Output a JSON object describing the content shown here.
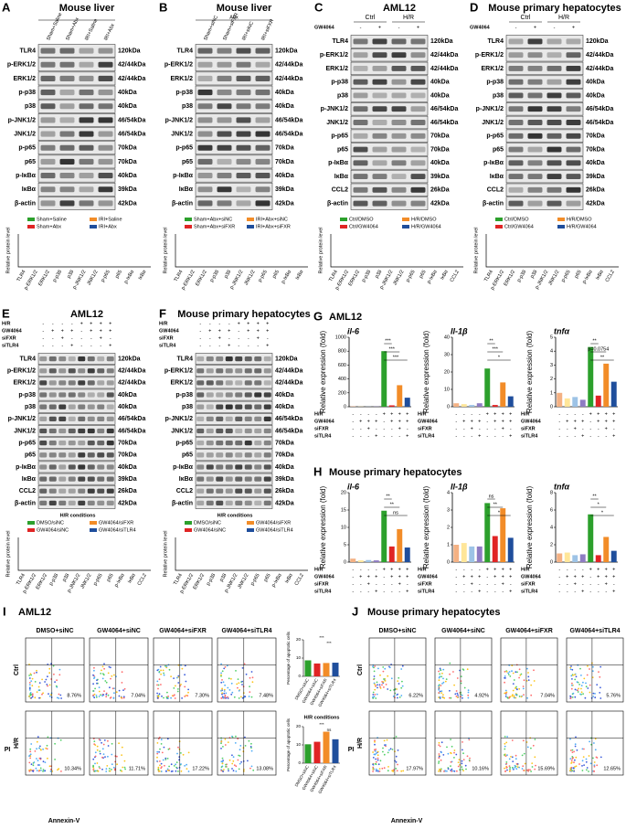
{
  "blot_panels": [
    {
      "letter": "A",
      "title": "Mouse liver",
      "lanes": [
        "Sham+Saline",
        "Sham+Abx",
        "IRI+Saline",
        "IRI+Abx"
      ],
      "rows": [
        [
          "TLR4",
          "120kDa"
        ],
        [
          "p-ERK1/2",
          "42/44kDa"
        ],
        [
          "ERK1/2",
          "42/44kDa"
        ],
        [
          "p-p38",
          "40kDa"
        ],
        [
          "p38",
          "40kDa"
        ],
        [
          "p-JNK1/2",
          "46/54kDa"
        ],
        [
          "JNK1/2",
          "46/54kDa"
        ],
        [
          "p-p65",
          "70kDa"
        ],
        [
          "p65",
          "70kDa"
        ],
        [
          "p-IκBα",
          "40kDa"
        ],
        [
          "IκBα",
          "39kDa"
        ],
        [
          "β-actin",
          "42kDa"
        ]
      ],
      "legend": [
        "Sham+Saline",
        "IRI+Saline",
        "Sham+Abx",
        "IRI+Abx"
      ],
      "legend_colors": [
        "#2ca02c",
        "#f28c28",
        "#e02424",
        "#1f4e9c"
      ],
      "y_label": "Relative protein level"
    },
    {
      "letter": "B",
      "title": "Mouse liver",
      "subtitle": "Abx",
      "lanes": [
        "Sham+siNC",
        "Sham+siFXR",
        "IRI+siNC",
        "IRI+siFXR"
      ],
      "rows": [
        [
          "TLR4",
          "120kDa"
        ],
        [
          "p-ERK1/2",
          "42/44kDa"
        ],
        [
          "ERK1/2",
          "42/44kDa"
        ],
        [
          "p-p38",
          "40kDa"
        ],
        [
          "p38",
          "40kDa"
        ],
        [
          "p-JNK1/2",
          "46/54kDa"
        ],
        [
          "JNK1/2",
          "46/54kDa"
        ],
        [
          "p-p65",
          "70kDa"
        ],
        [
          "p65",
          "70kDa"
        ],
        [
          "p-IκBα",
          "40kDa"
        ],
        [
          "IκBα",
          "39kDa"
        ],
        [
          "β-actin",
          "42kDa"
        ]
      ],
      "legend": [
        "Sham+Abx+siNC",
        "IRI+Abx+siNC",
        "Sham+Abx+siFXR",
        "IRI+Abx+siFXR"
      ],
      "legend_colors": [
        "#2ca02c",
        "#f28c28",
        "#e02424",
        "#1f4e9c"
      ],
      "y_label": "Relative protein level"
    },
    {
      "letter": "C",
      "title": "AML12",
      "groups": [
        "Ctrl",
        "H/R"
      ],
      "treatments": [
        {
          "name": "GW4064",
          "signs": [
            "-",
            "+",
            "-",
            "+"
          ]
        }
      ],
      "rows": [
        [
          "TLR4",
          "120kDa"
        ],
        [
          "p-ERK1/2",
          "42/44kDa"
        ],
        [
          "ERK1/2",
          "42/44kDa"
        ],
        [
          "p-p38",
          "40kDa"
        ],
        [
          "p38",
          "40kDa"
        ],
        [
          "p-JNK1/2",
          "46/54kDa"
        ],
        [
          "JNK1/2",
          "46/54kDa"
        ],
        [
          "p-p65",
          "70kDa"
        ],
        [
          "p65",
          "70kDa"
        ],
        [
          "p-IκBα",
          "40kDa"
        ],
        [
          "IκBα",
          "39kDa"
        ],
        [
          "CCL2",
          "26kDa"
        ],
        [
          "β-actin",
          "42kDa"
        ]
      ],
      "legend": [
        "Ctrl/DMSO",
        "H/R/DMSO",
        "Ctrl/GW4064",
        "H/R/GW4064"
      ],
      "legend_colors": [
        "#2ca02c",
        "#f28c28",
        "#e02424",
        "#1f4e9c"
      ],
      "y_label": "Relative protein level"
    },
    {
      "letter": "D",
      "title": "Mouse primary hepatocytes",
      "groups": [
        "Ctrl",
        "H/R"
      ],
      "treatments": [
        {
          "name": "GW4064",
          "signs": [
            "-",
            "+",
            "-",
            "+"
          ]
        }
      ],
      "rows": [
        [
          "TLR4",
          "120kDa"
        ],
        [
          "p-ERK1/2",
          "42/44kDa"
        ],
        [
          "ERK1/2",
          "42/44kDa"
        ],
        [
          "p-p38",
          "40kDa"
        ],
        [
          "p38",
          "40kDa"
        ],
        [
          "p-JNK1/2",
          "46/54kDa"
        ],
        [
          "JNK1/2",
          "46/54kDa"
        ],
        [
          "p-p65",
          "70kDa"
        ],
        [
          "p65",
          "70kDa"
        ],
        [
          "p-IκBα",
          "40kDa"
        ],
        [
          "IκBα",
          "39kDa"
        ],
        [
          "CCL2",
          "26kDa"
        ],
        [
          "β-actin",
          "42kDa"
        ]
      ],
      "legend": [
        "Ctrl/DMSO",
        "H/R/DMSO",
        "Ctrl/GW4064",
        "H/R/GW4064"
      ],
      "legend_colors": [
        "#2ca02c",
        "#f28c28",
        "#e02424",
        "#1f4e9c"
      ],
      "y_label": "Relative protein level"
    },
    {
      "letter": "E",
      "title": "AML12",
      "treatments": [
        {
          "name": "H/R",
          "signs": [
            "-",
            "-",
            "-",
            "-",
            "+",
            "+",
            "+",
            "+"
          ]
        },
        {
          "name": "GW4064",
          "signs": [
            "-",
            "+",
            "+",
            "+",
            "-",
            "+",
            "+",
            "+"
          ]
        },
        {
          "name": "siFXR",
          "signs": [
            "-",
            "-",
            "+",
            "-",
            "-",
            "-",
            "+",
            "-"
          ]
        },
        {
          "name": "siTLR4",
          "signs": [
            "-",
            "-",
            "-",
            "+",
            "-",
            "-",
            "-",
            "+"
          ]
        }
      ],
      "rows": [
        [
          "TLR4",
          "120kDa"
        ],
        [
          "p-ERK1/2",
          "42/44kDa"
        ],
        [
          "ERK1/2",
          "42/44kDa"
        ],
        [
          "p-p38",
          "40kDa"
        ],
        [
          "p38",
          "40kDa"
        ],
        [
          "p-JNK1/2",
          "46/54kDa"
        ],
        [
          "JNK1/2",
          "46/54kDa"
        ],
        [
          "p-p65",
          "70kDa"
        ],
        [
          "p65",
          "70kDa"
        ],
        [
          "p-IκBα",
          "40kDa"
        ],
        [
          "IκBα",
          "39kDa"
        ],
        [
          "CCL2",
          "26kDa"
        ],
        [
          "β-actin",
          "42kDa"
        ]
      ],
      "note": "H/R conditions",
      "legend": [
        "DMSO/siNC",
        "GW4064/siFXR",
        "GW4064/siNC",
        "GW4064/siTLR4"
      ],
      "legend_colors": [
        "#2ca02c",
        "#f28c28",
        "#e02424",
        "#1f4e9c"
      ],
      "y_label": "Relative protein level"
    },
    {
      "letter": "F",
      "title": "Mouse primary hepatocytes",
      "treatments": [
        {
          "name": "H/R",
          "signs": [
            "-",
            "-",
            "-",
            "-",
            "+",
            "+",
            "+",
            "+"
          ]
        },
        {
          "name": "GW4064",
          "signs": [
            "-",
            "+",
            "+",
            "+",
            "-",
            "+",
            "+",
            "+"
          ]
        },
        {
          "name": "siFXR",
          "signs": [
            "-",
            "-",
            "+",
            "-",
            "-",
            "-",
            "+",
            "-"
          ]
        },
        {
          "name": "siTLR4",
          "signs": [
            "-",
            "-",
            "-",
            "+",
            "-",
            "-",
            "-",
            "+"
          ]
        }
      ],
      "rows": [
        [
          "TLR4",
          "120kDa"
        ],
        [
          "p-ERK1/2",
          "42/44kDa"
        ],
        [
          "ERK1/2",
          "42/44kDa"
        ],
        [
          "p-p38",
          "40kDa"
        ],
        [
          "p38",
          "40kDa"
        ],
        [
          "p-JNK1/2",
          "46/54kDa"
        ],
        [
          "JNK1/2",
          "46/54kDa"
        ],
        [
          "p-p65",
          "70kDa"
        ],
        [
          "p65",
          "70kDa"
        ],
        [
          "p-IκBα",
          "40kDa"
        ],
        [
          "IκBα",
          "39kDa"
        ],
        [
          "CCL2",
          "26kDa"
        ],
        [
          "β-actin",
          "42kDa"
        ]
      ],
      "note": "H/R conditions",
      "legend": [
        "DMSO/siNC",
        "GW4064/siFXR",
        "GW4064/siNC",
        "GW4064/siTLR4"
      ],
      "legend_colors": [
        "#2ca02c",
        "#f28c28",
        "#e02424",
        "#1f4e9c"
      ],
      "y_label": "Relative protein level"
    }
  ],
  "qpcr_panels": [
    {
      "letter": "G",
      "title": "AML12",
      "y_label": "Relative expression  (fold)",
      "colors": [
        "#f4b183",
        "#ffe699",
        "#9dc3e6",
        "#8e7cc3",
        "#2ca02c",
        "#e02424",
        "#f28c28",
        "#1f4e9c"
      ],
      "conditions": [
        {
          "name": "H/R",
          "signs": [
            "-",
            "-",
            "-",
            "-",
            "+",
            "+",
            "+",
            "+"
          ]
        },
        {
          "name": "GW4064",
          "signs": [
            "-",
            "+",
            "+",
            "+",
            "-",
            "+",
            "+",
            "+"
          ]
        },
        {
          "name": "siFXR",
          "signs": [
            "-",
            "-",
            "+",
            "-",
            "-",
            "-",
            "+",
            "-"
          ]
        },
        {
          "name": "siTLR4",
          "signs": [
            "-",
            "-",
            "-",
            "+",
            "-",
            "-",
            "-",
            "+"
          ]
        }
      ],
      "charts": [
        {
          "gene": "il-6",
          "ylim": [
            0,
            1000
          ],
          "yticks": [
            0,
            200,
            400,
            600,
            800,
            1000
          ],
          "values": [
            5,
            3,
            2,
            3,
            800,
            20,
            310,
            130
          ],
          "sig": [
            "***",
            "***",
            "***"
          ]
        },
        {
          "gene": "Il-1β",
          "ylim": [
            0,
            40
          ],
          "yticks": [
            0,
            10,
            20,
            30,
            40
          ],
          "values": [
            2,
            1.5,
            1,
            2,
            22,
            1,
            14,
            6
          ],
          "sig": [
            "**",
            "***",
            "*"
          ]
        },
        {
          "gene": "tnfα",
          "ylim": [
            0,
            5
          ],
          "yticks": [
            0,
            1,
            2,
            3,
            4,
            5
          ],
          "values": [
            1,
            0.6,
            0.7,
            0.5,
            4.3,
            0.8,
            3.1,
            1.8
          ],
          "sig": [
            "**",
            "p=0.0754",
            "**"
          ]
        }
      ]
    },
    {
      "letter": "H",
      "title": "Mouse primary hepatocytes",
      "y_label": "Relative expression  (fold)",
      "colors": [
        "#f4b183",
        "#ffe699",
        "#9dc3e6",
        "#8e7cc3",
        "#2ca02c",
        "#e02424",
        "#f28c28",
        "#1f4e9c"
      ],
      "conditions": [
        {
          "name": "H/R",
          "signs": [
            "-",
            "-",
            "-",
            "-",
            "+",
            "+",
            "+",
            "+"
          ]
        },
        {
          "name": "GW4064",
          "signs": [
            "-",
            "+",
            "+",
            "+",
            "-",
            "+",
            "+",
            "+"
          ]
        },
        {
          "name": "siFXR",
          "signs": [
            "-",
            "-",
            "+",
            "-",
            "-",
            "-",
            "+",
            "-"
          ]
        },
        {
          "name": "siTLR4",
          "signs": [
            "-",
            "-",
            "-",
            "+",
            "-",
            "-",
            "-",
            "+"
          ]
        }
      ],
      "charts": [
        {
          "gene": "il-6",
          "ylim": [
            0,
            20
          ],
          "yticks": [
            0,
            5,
            10,
            15,
            20
          ],
          "values": [
            1,
            0.5,
            0.6,
            0.5,
            14.8,
            4.5,
            9.5,
            4.2
          ],
          "sig": [
            "**",
            "**",
            "ns"
          ]
        },
        {
          "gene": "Il-1β",
          "ylim": [
            0,
            4
          ],
          "yticks": [
            0,
            1,
            2,
            3,
            4
          ],
          "values": [
            1,
            1.1,
            0.9,
            0.9,
            3.4,
            1.5,
            3.1,
            1.4
          ],
          "sig": [
            "ns",
            "**",
            "*"
          ]
        },
        {
          "gene": "tnfα",
          "ylim": [
            0,
            8
          ],
          "yticks": [
            0,
            2,
            4,
            6,
            8
          ],
          "values": [
            1,
            1.1,
            0.8,
            0.9,
            5.5,
            0.8,
            2.9,
            1.3
          ],
          "sig": [
            "**",
            "*",
            "*"
          ]
        }
      ]
    }
  ],
  "flow_panels": [
    {
      "letter": "I",
      "title": "AML12",
      "columns": [
        "DMSO+siNC",
        "GW4064+siNC",
        "GW4064+siFXR",
        "GW4064+siTLR4"
      ],
      "rows": [
        {
          "name": "Ctrl",
          "percents": [
            "8.76%",
            "7.04%",
            "7.30%",
            "7.48%"
          ]
        },
        {
          "name": "H/R",
          "percents": [
            "10.34%",
            "11.71%",
            "17.22%",
            "13.08%"
          ]
        }
      ],
      "x_label": "Annexin-V",
      "y_label": "PI",
      "bar_colors": [
        "#2ca02c",
        "#e02424",
        "#f28c28",
        "#1f4e9c"
      ],
      "charts": [
        {
          "y_label": "Percentage of apoptotic cells",
          "ylim": [
            0,
            20
          ],
          "yticks": [
            0,
            10,
            20
          ],
          "values": [
            8.76,
            7.04,
            7.3,
            7.48
          ],
          "sig": [
            "***",
            "***"
          ]
        },
        {
          "note": "H/R conditions",
          "y_label": "Percentage of apoptotic cells",
          "ylim": [
            0,
            20
          ],
          "yticks": [
            0,
            10,
            20
          ],
          "values": [
            10.34,
            11.71,
            17.22,
            13.08
          ],
          "sig": [
            "***",
            "ns"
          ]
        }
      ]
    },
    {
      "letter": "J",
      "title": "Mouse primary hepatocytes",
      "columns": [
        "DMSO+siNC",
        "GW4064+siNC",
        "GW4064+siFXR",
        "GW4064+siTLR4"
      ],
      "rows": [
        {
          "name": "Ctrl",
          "percents": [
            "6.22%",
            "4.92%",
            "7.04%",
            "5.76%"
          ]
        },
        {
          "name": "H/R",
          "percents": [
            "17.97%",
            "10.16%",
            "15.69%",
            "12.65%"
          ]
        }
      ],
      "x_label": "Annexin-V",
      "y_label": "PI"
    }
  ]
}
